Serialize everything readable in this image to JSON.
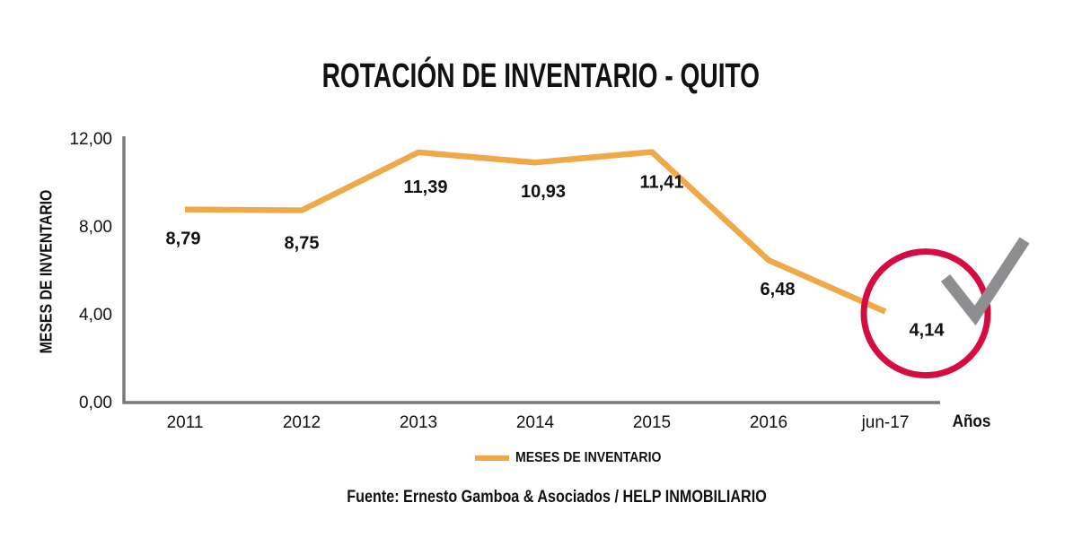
{
  "title": "ROTACIÓN DE INVENTARIO - QUITO",
  "chart_data": {
    "type": "line",
    "title": "ROTACIÓN DE INVENTARIO - QUITO",
    "categories": [
      "2011",
      "2012",
      "2013",
      "2014",
      "2015",
      "2016",
      "jun-17"
    ],
    "series": [
      {
        "name": "MESES DE INVENTARIO",
        "values": [
          8.79,
          8.75,
          11.39,
          10.93,
          11.41,
          6.48,
          4.14
        ]
      }
    ],
    "value_labels": [
      "8,79",
      "8,75",
      "11,39",
      "10,93",
      "11,41",
      "6,48",
      "4,14"
    ],
    "xlabel": "Años",
    "ylabel": "MESES DE INVENTARIO",
    "ylim": [
      0,
      12
    ],
    "yticks": [
      0,
      4,
      8,
      12
    ],
    "ytick_labels": [
      "0,00",
      "4,00",
      "8,00",
      "12,00"
    ],
    "grid": false,
    "legend_position": "bottom",
    "annotation": {
      "type": "circle-highlight-with-checkmark",
      "highlighted_point": "jun-17",
      "highlighted_value": 4.14
    }
  },
  "legend": {
    "label": "MESES DE INVENTARIO"
  },
  "source": "Fuente: Ernesto Gamboa & Asociados / HELP INMOBILIARIO",
  "colors": {
    "line": "#F0A848",
    "highlight_circle": "#D60B42",
    "checkmark": "#8E8E90",
    "axis": "#7A7A7C",
    "text": "#111111"
  }
}
